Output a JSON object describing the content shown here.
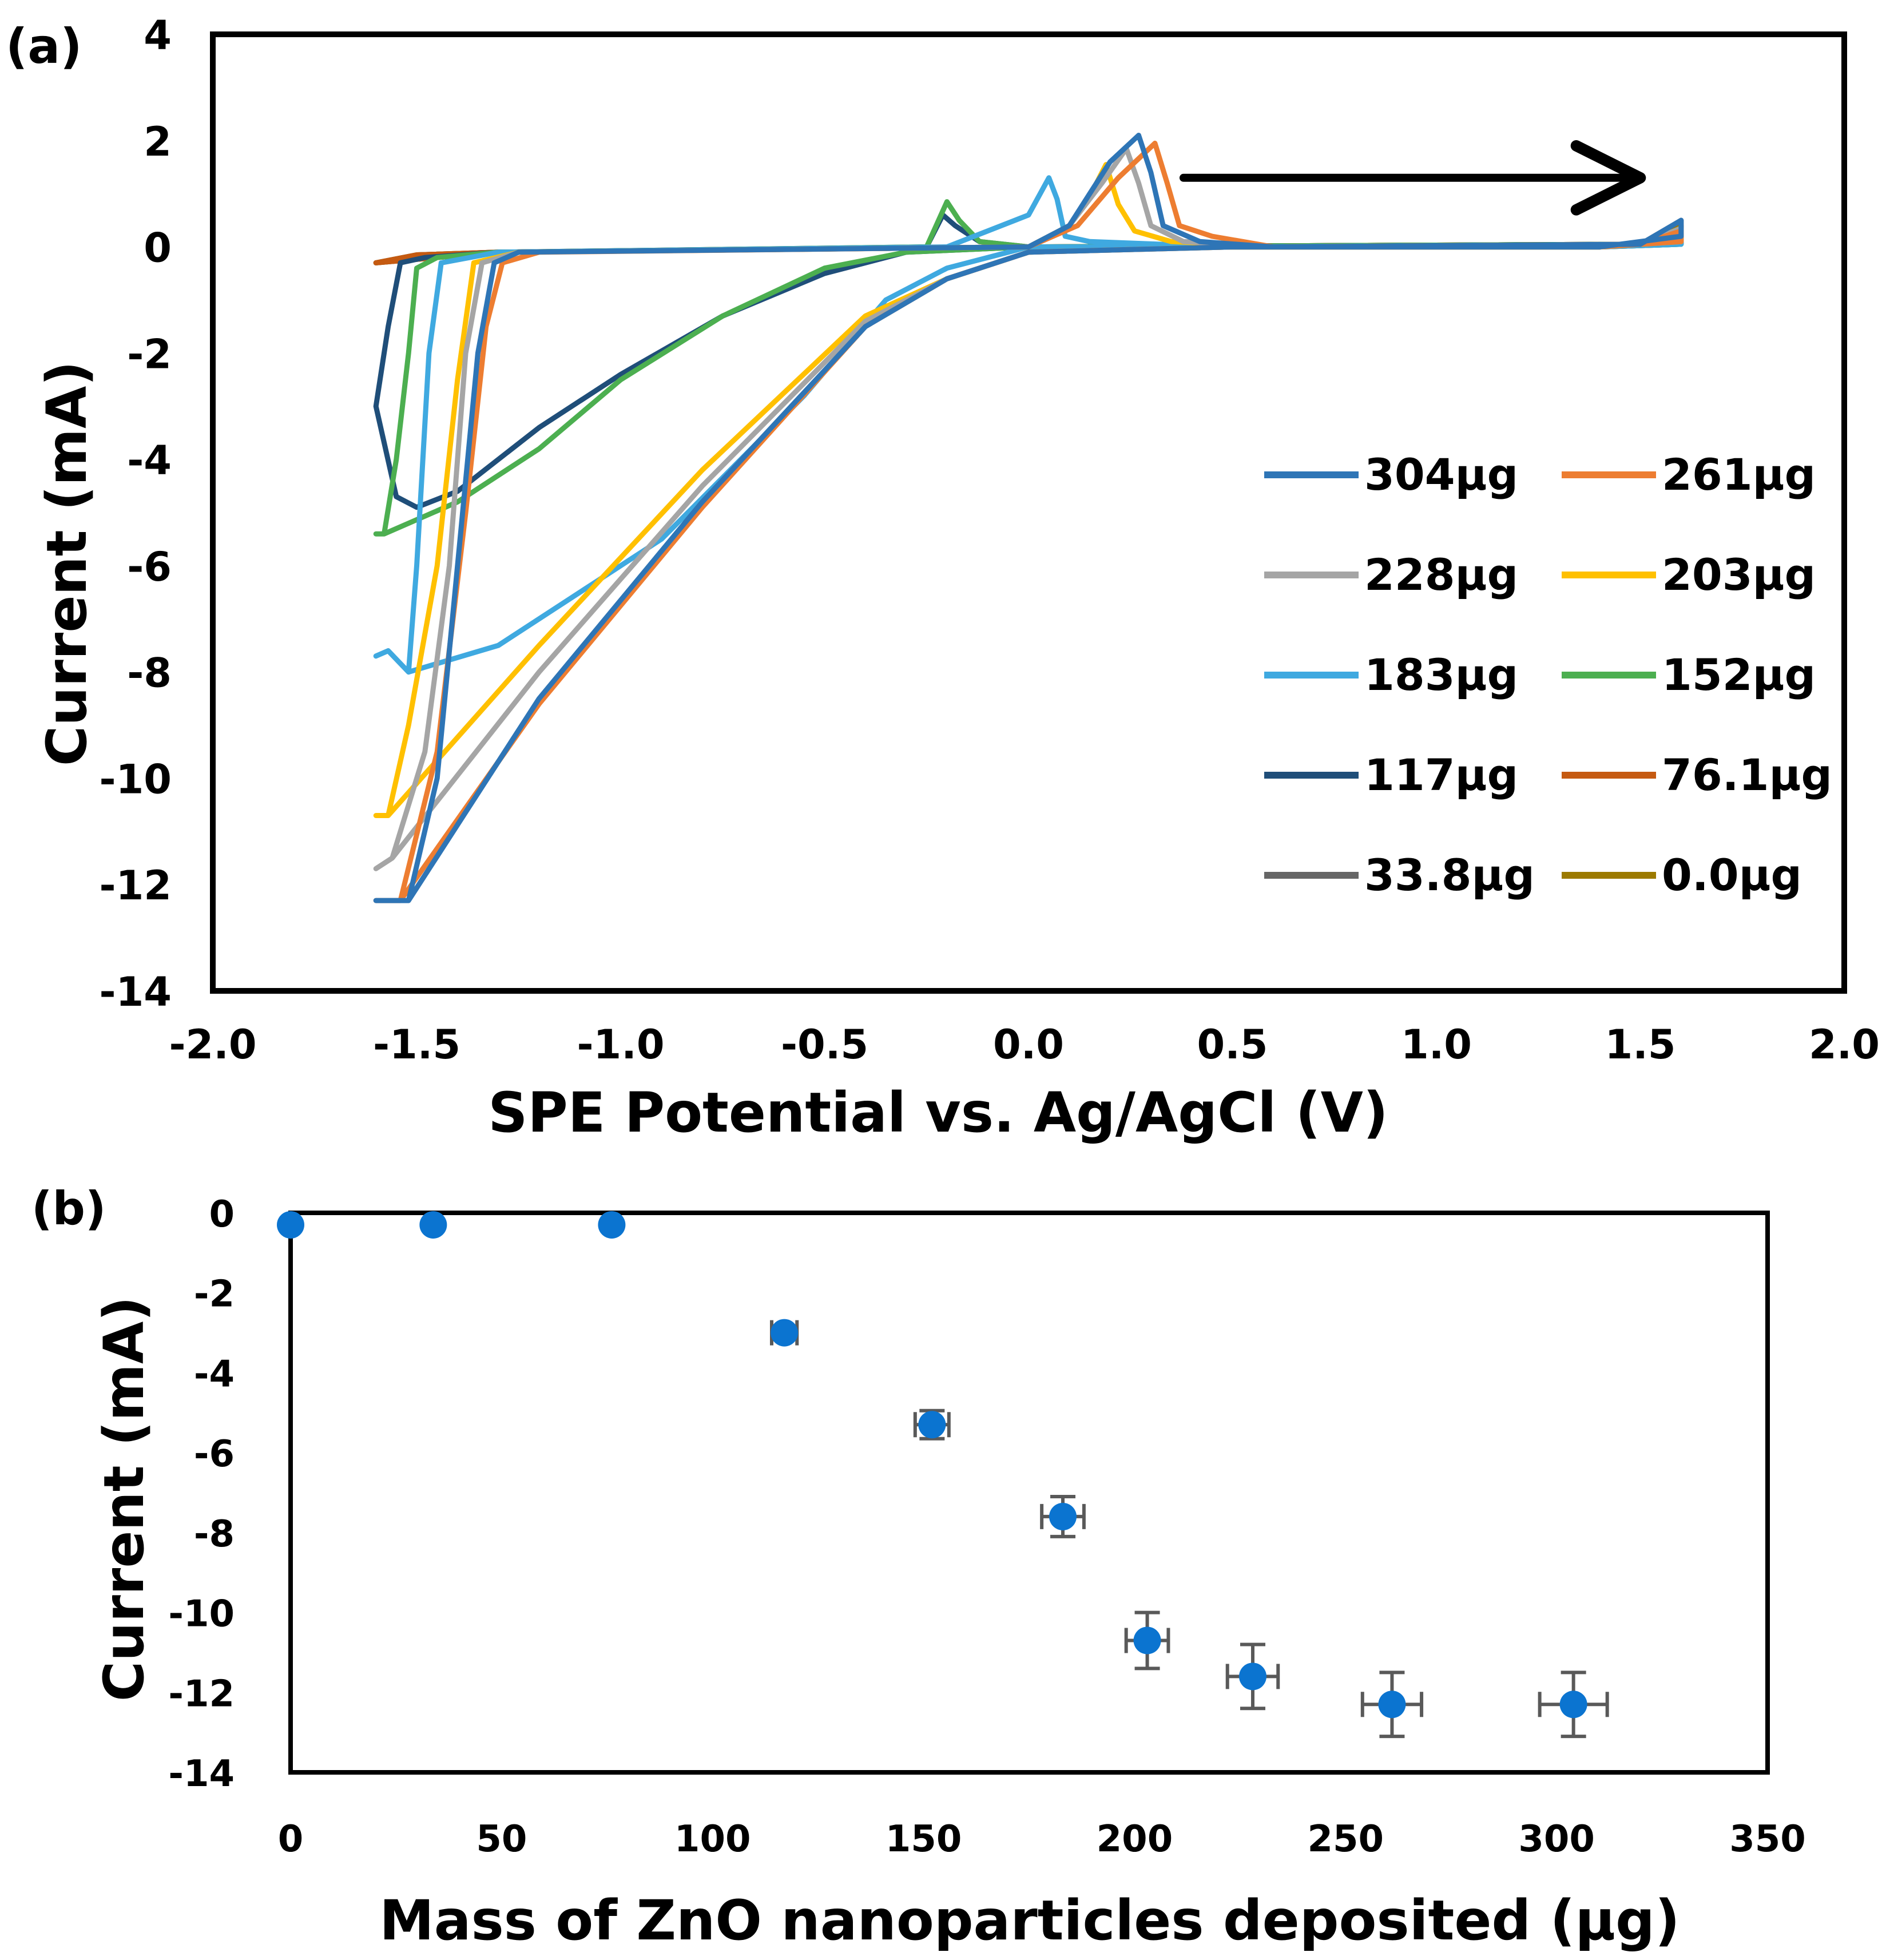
{
  "colors": {
    "s304": "#2E75B6",
    "s261": "#ED7D31",
    "s228": "#A5A5A5",
    "s203": "#FFC000",
    "s183": "#3FA9E0",
    "s152": "#4CAF50",
    "s117": "#1F4E79",
    "s76": "#C55A11",
    "s33": "#666666",
    "s0": "#9C7A00",
    "point": "#0B74D0",
    "errorbar": "#595959"
  },
  "chart_data": [
    {
      "panel": "(a)",
      "type": "line",
      "title": "",
      "xlabel": "SPE Potential vs. Ag/AgCl  (V)",
      "ylabel": "Current  (mA)",
      "xlim": [
        -2.0,
        2.0
      ],
      "ylim": [
        -14,
        4
      ],
      "xticks": [
        "-2.0",
        "-1.5",
        "-1.0",
        "-0.5",
        "0.0",
        "0.5",
        "1.0",
        "1.5",
        "2.0"
      ],
      "yticks": [
        "4",
        "2",
        "0",
        "-2",
        "-4",
        "-6",
        "-8",
        "-10",
        "-12",
        "-14"
      ],
      "annotation": "arrow pointing right (scan direction) from x=0.38 to x=1.5 at y=1.3 mA",
      "legend_position": "lower-right",
      "series": [
        {
          "name": "304μg",
          "color_key": "s304",
          "points": [
            [
              -1.6,
              -12.3
            ],
            [
              -1.52,
              -12.3
            ],
            [
              -1.45,
              -10
            ],
            [
              -1.4,
              -6
            ],
            [
              -1.35,
              -2
            ],
            [
              -1.31,
              -0.3
            ],
            [
              -1.25,
              -0.1
            ],
            [
              0.0,
              0.0
            ],
            [
              0.1,
              0.4
            ],
            [
              0.2,
              1.6
            ],
            [
              0.27,
              2.1
            ],
            [
              0.3,
              1.4
            ],
            [
              0.33,
              0.4
            ],
            [
              0.42,
              0.1
            ],
            [
              0.6,
              0.0
            ],
            [
              1.5,
              0.05
            ],
            [
              1.6,
              0.5
            ],
            [
              1.6,
              0.2
            ],
            [
              1.4,
              0.0
            ],
            [
              0.5,
              0.0
            ],
            [
              0.0,
              -0.1
            ],
            [
              -0.2,
              -0.6
            ],
            [
              -0.4,
              -1.5
            ],
            [
              -0.8,
              -4.8
            ],
            [
              -1.2,
              -8.5
            ],
            [
              -1.52,
              -12.3
            ]
          ]
        },
        {
          "name": "261μg",
          "color_key": "s261",
          "points": [
            [
              -1.6,
              -12.3
            ],
            [
              -1.54,
              -12.3
            ],
            [
              -1.45,
              -9.5
            ],
            [
              -1.38,
              -5
            ],
            [
              -1.33,
              -1.5
            ],
            [
              -1.29,
              -0.3
            ],
            [
              -1.2,
              -0.1
            ],
            [
              0.0,
              0.0
            ],
            [
              0.12,
              0.4
            ],
            [
              0.22,
              1.3
            ],
            [
              0.31,
              1.95
            ],
            [
              0.34,
              1.2
            ],
            [
              0.37,
              0.4
            ],
            [
              0.45,
              0.2
            ],
            [
              0.6,
              0.0
            ],
            [
              1.5,
              0.05
            ],
            [
              1.6,
              0.3
            ],
            [
              1.6,
              0.1
            ],
            [
              1.4,
              0.0
            ],
            [
              0.5,
              0.0
            ],
            [
              0.0,
              -0.1
            ],
            [
              -0.2,
              -0.6
            ],
            [
              -0.4,
              -1.5
            ],
            [
              -0.8,
              -4.9
            ],
            [
              -1.2,
              -8.6
            ],
            [
              -1.54,
              -12.3
            ]
          ]
        },
        {
          "name": "228μg",
          "color_key": "s228",
          "points": [
            [
              -1.6,
              -11.7
            ],
            [
              -1.56,
              -11.5
            ],
            [
              -1.48,
              -9.5
            ],
            [
              -1.42,
              -6
            ],
            [
              -1.38,
              -2
            ],
            [
              -1.34,
              -0.3
            ],
            [
              -1.25,
              -0.1
            ],
            [
              0.0,
              0.0
            ],
            [
              0.1,
              0.4
            ],
            [
              0.18,
              1.2
            ],
            [
              0.24,
              1.85
            ],
            [
              0.27,
              1.2
            ],
            [
              0.3,
              0.4
            ],
            [
              0.38,
              0.1
            ],
            [
              0.6,
              0.0
            ],
            [
              1.5,
              0.05
            ],
            [
              1.6,
              0.35
            ],
            [
              1.6,
              0.1
            ],
            [
              1.4,
              0.0
            ],
            [
              0.5,
              0.0
            ],
            [
              0.0,
              -0.1
            ],
            [
              -0.2,
              -0.6
            ],
            [
              -0.4,
              -1.4
            ],
            [
              -0.8,
              -4.5
            ],
            [
              -1.2,
              -8
            ],
            [
              -1.56,
              -11.5
            ]
          ]
        },
        {
          "name": "203μg",
          "color_key": "s203",
          "points": [
            [
              -1.6,
              -10.7
            ],
            [
              -1.57,
              -10.7
            ],
            [
              -1.52,
              -9
            ],
            [
              -1.45,
              -6
            ],
            [
              -1.4,
              -2.5
            ],
            [
              -1.36,
              -0.3
            ],
            [
              -1.25,
              -0.1
            ],
            [
              0.0,
              0.0
            ],
            [
              0.1,
              0.4
            ],
            [
              0.16,
              1.1
            ],
            [
              0.19,
              1.55
            ],
            [
              0.22,
              0.8
            ],
            [
              0.26,
              0.3
            ],
            [
              0.35,
              0.1
            ],
            [
              0.6,
              0.0
            ],
            [
              1.5,
              0.05
            ],
            [
              1.6,
              0.3
            ],
            [
              1.6,
              0.1
            ],
            [
              1.4,
              0.0
            ],
            [
              0.5,
              0.0
            ],
            [
              0.0,
              -0.1
            ],
            [
              -0.2,
              -0.6
            ],
            [
              -0.4,
              -1.3
            ],
            [
              -0.8,
              -4.2
            ],
            [
              -1.2,
              -7.5
            ],
            [
              -1.57,
              -10.7
            ]
          ]
        },
        {
          "name": "183μg",
          "color_key": "s183",
          "points": [
            [
              -1.6,
              -7.7
            ],
            [
              -1.57,
              -7.6
            ],
            [
              -1.52,
              -8.0
            ],
            [
              -1.5,
              -6
            ],
            [
              -1.47,
              -2
            ],
            [
              -1.44,
              -0.3
            ],
            [
              -1.3,
              -0.1
            ],
            [
              -0.2,
              0.0
            ],
            [
              0.0,
              0.6
            ],
            [
              0.05,
              1.3
            ],
            [
              0.07,
              0.9
            ],
            [
              0.09,
              0.2
            ],
            [
              0.15,
              0.1
            ],
            [
              0.5,
              0.0
            ],
            [
              1.5,
              0.05
            ],
            [
              1.6,
              0.2
            ],
            [
              1.6,
              0.05
            ],
            [
              1.4,
              0.0
            ],
            [
              0.5,
              0.0
            ],
            [
              0.0,
              0.0
            ],
            [
              -0.2,
              -0.4
            ],
            [
              -0.35,
              -1
            ],
            [
              -0.55,
              -2.8
            ],
            [
              -0.9,
              -5.5
            ],
            [
              -1.3,
              -7.5
            ],
            [
              -1.52,
              -8.0
            ]
          ]
        },
        {
          "name": "152μg",
          "color_key": "s152",
          "points": [
            [
              -1.6,
              -5.4
            ],
            [
              -1.58,
              -5.4
            ],
            [
              -1.55,
              -4
            ],
            [
              -1.52,
              -2
            ],
            [
              -1.5,
              -0.4
            ],
            [
              -1.45,
              -0.2
            ],
            [
              -1.3,
              -0.1
            ],
            [
              -0.25,
              0.0
            ],
            [
              -0.2,
              0.85
            ],
            [
              -0.17,
              0.5
            ],
            [
              -0.12,
              0.1
            ],
            [
              0.0,
              0.0
            ],
            [
              1.5,
              0.05
            ],
            [
              1.6,
              0.2
            ],
            [
              1.6,
              0.05
            ],
            [
              1.4,
              0.0
            ],
            [
              0.0,
              0.0
            ],
            [
              -0.3,
              -0.1
            ],
            [
              -0.5,
              -0.4
            ],
            [
              -0.75,
              -1.3
            ],
            [
              -1.0,
              -2.5
            ],
            [
              -1.2,
              -3.8
            ],
            [
              -1.4,
              -4.8
            ],
            [
              -1.58,
              -5.4
            ]
          ]
        },
        {
          "name": "117μg",
          "color_key": "s117",
          "points": [
            [
              -1.6,
              -3.0
            ],
            [
              -1.57,
              -1.5
            ],
            [
              -1.54,
              -0.3
            ],
            [
              -1.48,
              -0.2
            ],
            [
              -1.3,
              -0.1
            ],
            [
              -0.25,
              0.0
            ],
            [
              -0.21,
              0.6
            ],
            [
              -0.18,
              0.4
            ],
            [
              -0.12,
              0.1
            ],
            [
              0.0,
              0.0
            ],
            [
              1.5,
              0.05
            ],
            [
              1.6,
              0.2
            ],
            [
              1.6,
              0.05
            ],
            [
              1.4,
              0.0
            ],
            [
              0.0,
              0.0
            ],
            [
              -0.3,
              -0.1
            ],
            [
              -0.5,
              -0.5
            ],
            [
              -0.75,
              -1.3
            ],
            [
              -1.0,
              -2.4
            ],
            [
              -1.2,
              -3.4
            ],
            [
              -1.4,
              -4.6
            ],
            [
              -1.5,
              -4.9
            ],
            [
              -1.55,
              -4.7
            ],
            [
              -1.6,
              -3.0
            ]
          ]
        },
        {
          "name": "76.1μg",
          "color_key": "s76",
          "points": [
            [
              -1.6,
              -0.3
            ],
            [
              -1.5,
              -0.15
            ],
            [
              -1.3,
              -0.1
            ],
            [
              0.0,
              0.0
            ],
            [
              1.5,
              0.05
            ],
            [
              1.6,
              0.3
            ],
            [
              1.6,
              0.1
            ],
            [
              1.4,
              0.0
            ],
            [
              0.0,
              0.0
            ],
            [
              -1.3,
              -0.1
            ],
            [
              -1.6,
              -0.3
            ]
          ]
        },
        {
          "name": "33.8μg",
          "color_key": "s33",
          "points": [
            [
              -1.6,
              -0.3
            ],
            [
              -1.5,
              -0.15
            ],
            [
              -1.3,
              -0.1
            ],
            [
              0.0,
              0.0
            ],
            [
              1.5,
              0.05
            ],
            [
              1.6,
              0.5
            ],
            [
              1.6,
              0.1
            ],
            [
              1.4,
              0.0
            ],
            [
              0.0,
              0.0
            ],
            [
              -1.3,
              -0.1
            ],
            [
              -1.6,
              -0.3
            ]
          ]
        },
        {
          "name": "0.0μg",
          "color_key": "s0",
          "points": [
            [
              -1.6,
              -0.3
            ],
            [
              -1.5,
              -0.15
            ],
            [
              -1.3,
              -0.1
            ],
            [
              0.0,
              0.0
            ],
            [
              1.5,
              0.05
            ],
            [
              1.6,
              0.4
            ],
            [
              1.6,
              0.1
            ],
            [
              1.4,
              0.0
            ],
            [
              0.0,
              0.0
            ],
            [
              -1.3,
              -0.1
            ],
            [
              -1.6,
              -0.3
            ]
          ]
        }
      ]
    },
    {
      "panel": "(b)",
      "type": "scatter",
      "title": "",
      "xlabel": "Mass of ZnO nanoparticles deposited (μg)",
      "ylabel": "Current (mA)",
      "xlim": [
        0,
        350
      ],
      "ylim": [
        -14,
        0
      ],
      "xticks": [
        "0",
        "50",
        "100",
        "150",
        "200",
        "250",
        "300",
        "350"
      ],
      "yticks": [
        "0",
        "-2",
        "-4",
        "-6",
        "-8",
        "-10",
        "-12",
        "-14"
      ],
      "points": [
        {
          "x": 0,
          "y": -0.3,
          "xerr": 0,
          "yerr": 0
        },
        {
          "x": 33.8,
          "y": -0.3,
          "xerr": 0,
          "yerr": 0
        },
        {
          "x": 76.1,
          "y": -0.3,
          "xerr": 0,
          "yerr": 0
        },
        {
          "x": 117,
          "y": -3.0,
          "xerr": 3,
          "yerr": 0.15
        },
        {
          "x": 152,
          "y": -5.3,
          "xerr": 4,
          "yerr": 0.35
        },
        {
          "x": 183,
          "y": -7.6,
          "xerr": 5,
          "yerr": 0.5
        },
        {
          "x": 203,
          "y": -10.7,
          "xerr": 5,
          "yerr": 0.7
        },
        {
          "x": 228,
          "y": -11.6,
          "xerr": 6,
          "yerr": 0.8
        },
        {
          "x": 261,
          "y": -12.3,
          "xerr": 7,
          "yerr": 0.8
        },
        {
          "x": 304,
          "y": -12.3,
          "xerr": 8,
          "yerr": 0.8
        }
      ]
    }
  ]
}
